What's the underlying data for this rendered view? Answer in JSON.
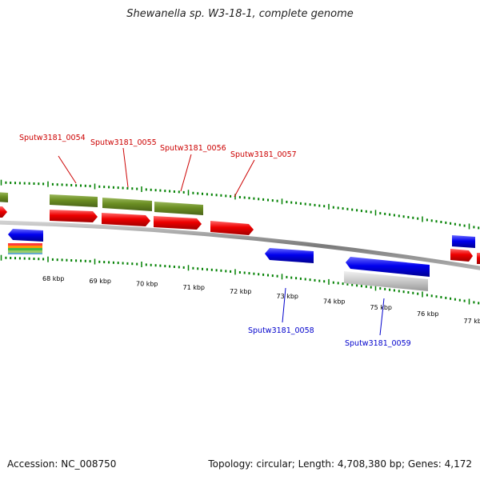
{
  "title": "Shewanella sp. W3-18-1, complete genome",
  "footer": {
    "accession": "Accession: NC_008750",
    "summary": "Topology: circular; Length: 4,708,380 bp; Genes: 4,172"
  },
  "colors": {
    "forward_cds": "#e60000",
    "reverse_cds": "#0000e0",
    "gene_bar": "#6b8e23",
    "pseudo_grey": "#c8c8c8",
    "tick_green": "#008000",
    "backbone": "#808080",
    "label_red": "#cc0000",
    "label_blue": "#0000cc"
  },
  "scale": {
    "ticks": [
      {
        "label": "68 kbp"
      },
      {
        "label": "69 kbp"
      },
      {
        "label": "70 kbp"
      },
      {
        "label": "71 kbp"
      },
      {
        "label": "72 kbp"
      },
      {
        "label": "73 kbp"
      },
      {
        "label": "74 kbp"
      },
      {
        "label": "75 kbp"
      },
      {
        "label": "76 kbp"
      },
      {
        "label": "77 kbp"
      }
    ]
  },
  "gene_labels": [
    {
      "text": "Sputw3181_0054",
      "strand": "forward"
    },
    {
      "text": "Sputw3181_0055",
      "strand": "forward"
    },
    {
      "text": "Sputw3181_0056",
      "strand": "forward"
    },
    {
      "text": "Sputw3181_0057",
      "strand": "forward"
    },
    {
      "text": "Sputw3181_0058",
      "strand": "reverse"
    },
    {
      "text": "Sputw3181_0059",
      "strand": "reverse"
    }
  ]
}
